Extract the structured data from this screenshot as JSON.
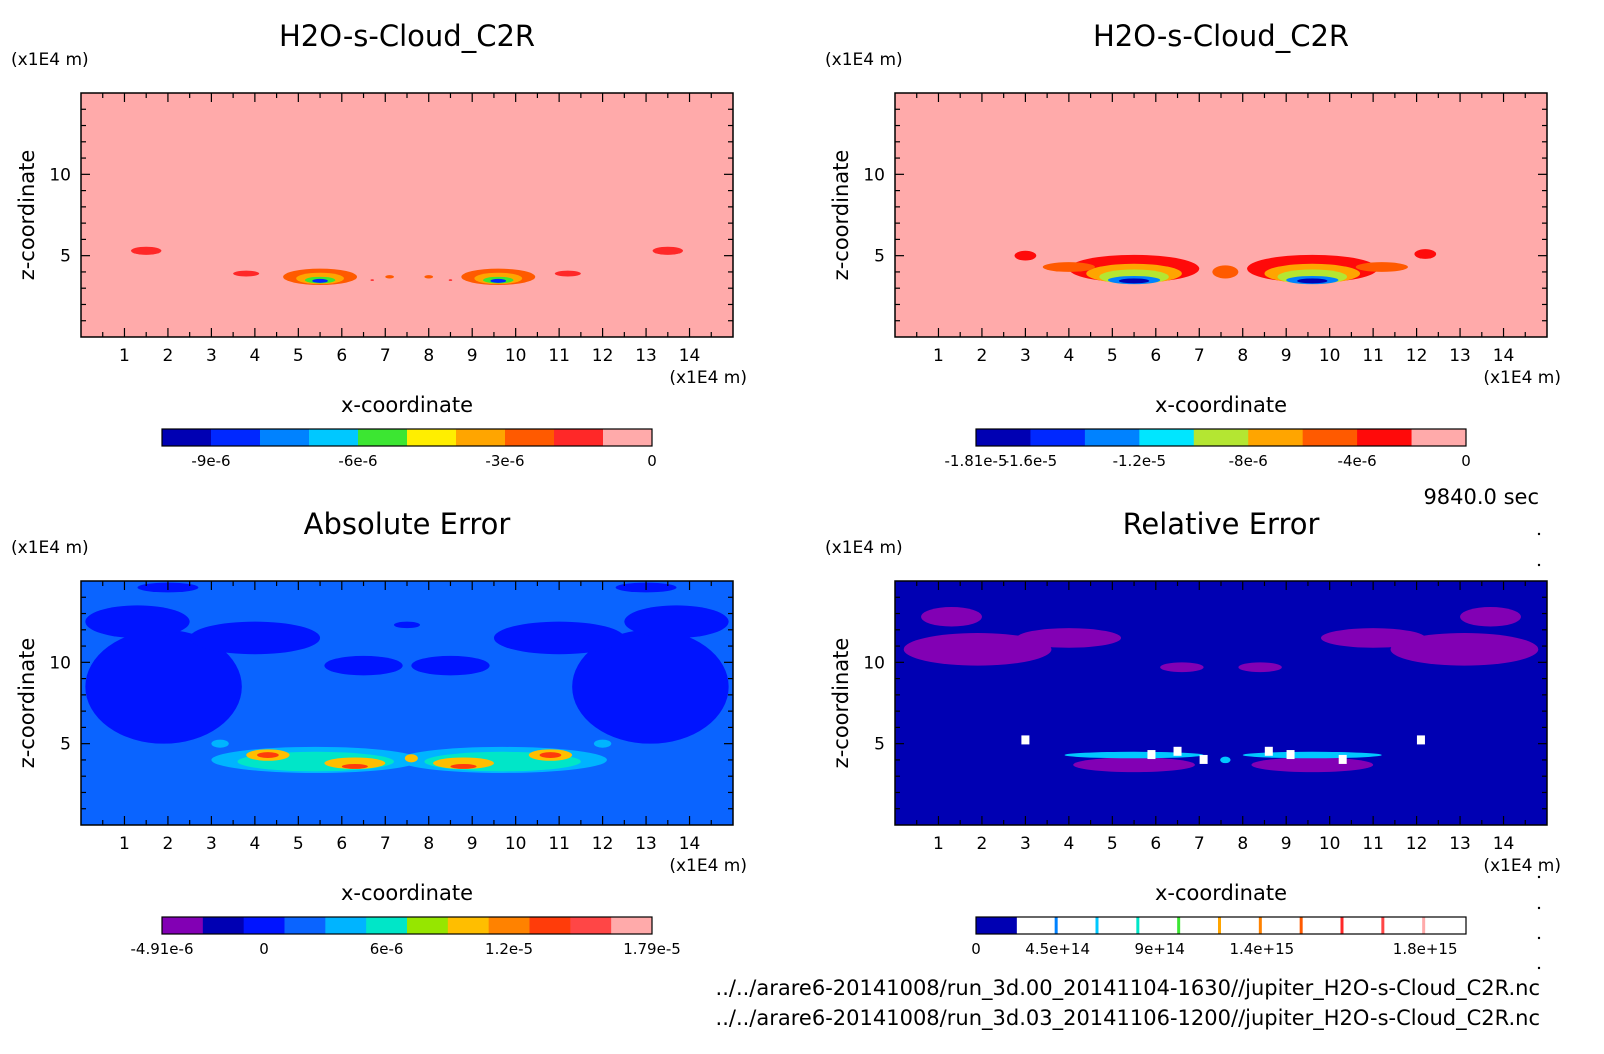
{
  "time_label": "9840.0 sec",
  "files": [
    "../../arare6-20141008/run_3d.00_20141104-1630//jupiter_H2O-s-Cloud_C2R.nc",
    "../../arare6-20141008/run_3d.03_20141106-1200//jupiter_H2O-s-Cloud_C2R.nc"
  ],
  "chart_data": [
    {
      "type": "heatmap",
      "id": "p1",
      "title": "H2O-s-Cloud_C2R",
      "xlabel": "x-coordinate",
      "ylabel": "z-coordinate",
      "x_unit": "(x1E4 m)",
      "y_unit": "(x1E4 m)",
      "xlim": [
        0,
        15
      ],
      "ylim": [
        0,
        15
      ],
      "x_ticks": [
        "1",
        "2",
        "3",
        "4",
        "5",
        "6",
        "7",
        "8",
        "9",
        "10",
        "11",
        "12",
        "13",
        "14"
      ],
      "y_ticks": [
        "5",
        "10"
      ],
      "background_color": "#ffaaaa",
      "colorbar": {
        "colors": [
          "#0000b3",
          "#0028ff",
          "#0082ff",
          "#00c8ff",
          "#3ce632",
          "#ffee00",
          "#ffa500",
          "#ff5a00",
          "#ff2828",
          "#ffaaaa"
        ],
        "labels": [
          "-9e-6",
          "-6e-6",
          "-3e-6",
          "0"
        ],
        "label_bins": [
          1,
          4,
          7,
          10
        ]
      }
    },
    {
      "type": "heatmap",
      "id": "p2",
      "title": "H2O-s-Cloud_C2R",
      "xlabel": "x-coordinate",
      "ylabel": "z-coordinate",
      "x_unit": "(x1E4 m)",
      "y_unit": "(x1E4 m)",
      "xlim": [
        0,
        15
      ],
      "ylim": [
        0,
        15
      ],
      "x_ticks": [
        "1",
        "2",
        "3",
        "4",
        "5",
        "6",
        "7",
        "8",
        "9",
        "10",
        "11",
        "12",
        "13",
        "14"
      ],
      "y_ticks": [
        "5",
        "10"
      ],
      "background_color": "#ffaaaa",
      "colorbar": {
        "colors": [
          "#0000b3",
          "#0028ff",
          "#0082ff",
          "#00e6ff",
          "#b4e632",
          "#ffa500",
          "#ff5a00",
          "#ff0a0a",
          "#ffaaaa"
        ],
        "labels": [
          "-1.81e-5",
          "-1.6e-5",
          "-1.2e-5",
          "-8e-6",
          "-4e-6",
          "0"
        ],
        "label_bins": [
          0,
          1,
          3,
          5,
          7,
          9
        ]
      }
    },
    {
      "type": "heatmap",
      "id": "p3",
      "title": "Absolute Error",
      "xlabel": "x-coordinate",
      "ylabel": "z-coordinate",
      "x_unit": "(x1E4 m)",
      "y_unit": "(x1E4 m)",
      "xlim": [
        0,
        15
      ],
      "ylim": [
        0,
        15
      ],
      "x_ticks": [
        "1",
        "2",
        "3",
        "4",
        "5",
        "6",
        "7",
        "8",
        "9",
        "10",
        "11",
        "12",
        "13",
        "14"
      ],
      "y_ticks": [
        "5",
        "10"
      ],
      "background_color": "#0a64ff",
      "colorbar": {
        "colors": [
          "#8200b4",
          "#0000b3",
          "#0014ff",
          "#0a64ff",
          "#00b4ff",
          "#00e6c8",
          "#96e600",
          "#ffbe00",
          "#ff8200",
          "#ff3c0a",
          "#ff4646",
          "#ffaaaa"
        ],
        "labels": [
          "-4.91e-6",
          "0",
          "6e-6",
          "1.2e-5",
          "1.79e-5"
        ],
        "label_bins": [
          0,
          2.5,
          5.5,
          8.5,
          12
        ]
      }
    },
    {
      "type": "heatmap",
      "id": "p4",
      "title": "Relative Error",
      "xlabel": "x-coordinate",
      "ylabel": "z-coordinate",
      "x_unit": "(x1E4 m)",
      "y_unit": "(x1E4 m)",
      "xlim": [
        0,
        15
      ],
      "ylim": [
        0,
        15
      ],
      "x_ticks": [
        "1",
        "2",
        "3",
        "4",
        "5",
        "6",
        "7",
        "8",
        "9",
        "10",
        "11",
        "12",
        "13",
        "14"
      ],
      "y_ticks": [
        "5",
        "10"
      ],
      "background_color": "#0000b3",
      "colorbar": {
        "colors": [
          "#0000b3",
          "#ffffff",
          "#ffffff",
          "#ffffff",
          "#ffffff",
          "#ffffff",
          "#ffffff",
          "#ffffff",
          "#ffffff",
          "#ffffff",
          "#ffffff",
          "#ffffff"
        ],
        "stripe_colors": [
          "#0000b3",
          "#0082ff",
          "#00c8ff",
          "#00e6c8",
          "#3ce632",
          "#ffa500",
          "#ff8200",
          "#ff5a00",
          "#ff2828",
          "#ff4646",
          "#ffaaaa"
        ],
        "labels": [
          "0",
          "4.5e+14",
          "9e+14",
          "1.4e+15",
          "1.8e+15"
        ],
        "label_bins": [
          0,
          2,
          4.5,
          7,
          11
        ]
      }
    }
  ]
}
